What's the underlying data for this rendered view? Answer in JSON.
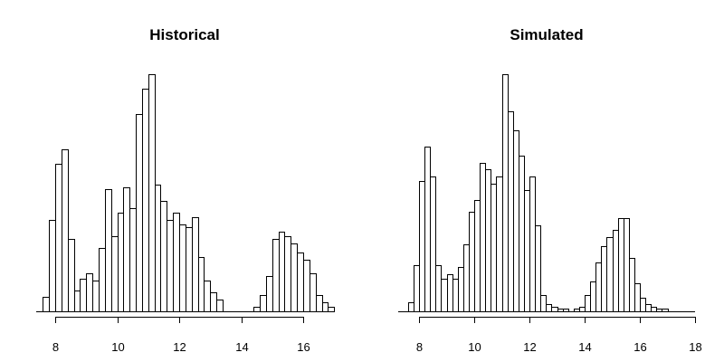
{
  "chart_data": [
    {
      "type": "bar",
      "title": "Historical",
      "xlabel": "",
      "ylabel": "",
      "bin_width": 0.2,
      "xlim": [
        7.4,
        17.0
      ],
      "ylim": [
        0,
        100
      ],
      "x_ticks": [
        8,
        10,
        12,
        14,
        16
      ],
      "grid": false,
      "bins": [
        {
          "x0": 7.4,
          "value": 0
        },
        {
          "x0": 7.6,
          "value": 6
        },
        {
          "x0": 7.8,
          "value": 39
        },
        {
          "x0": 8.0,
          "value": 63
        },
        {
          "x0": 8.2,
          "value": 69
        },
        {
          "x0": 8.4,
          "value": 31
        },
        {
          "x0": 8.6,
          "value": 9
        },
        {
          "x0": 8.8,
          "value": 14
        },
        {
          "x0": 9.0,
          "value": 16
        },
        {
          "x0": 9.2,
          "value": 13
        },
        {
          "x0": 9.4,
          "value": 27
        },
        {
          "x0": 9.6,
          "value": 52
        },
        {
          "x0": 9.8,
          "value": 32
        },
        {
          "x0": 10.0,
          "value": 42
        },
        {
          "x0": 10.2,
          "value": 53
        },
        {
          "x0": 10.4,
          "value": 44
        },
        {
          "x0": 10.6,
          "value": 84
        },
        {
          "x0": 10.8,
          "value": 95
        },
        {
          "x0": 11.0,
          "value": 101
        },
        {
          "x0": 11.2,
          "value": 54
        },
        {
          "x0": 11.4,
          "value": 47
        },
        {
          "x0": 11.6,
          "value": 39
        },
        {
          "x0": 11.8,
          "value": 42
        },
        {
          "x0": 12.0,
          "value": 37
        },
        {
          "x0": 12.2,
          "value": 36
        },
        {
          "x0": 12.4,
          "value": 40
        },
        {
          "x0": 12.6,
          "value": 23
        },
        {
          "x0": 12.8,
          "value": 13
        },
        {
          "x0": 13.0,
          "value": 8
        },
        {
          "x0": 13.2,
          "value": 5
        },
        {
          "x0": 13.4,
          "value": 0
        },
        {
          "x0": 13.6,
          "value": 0
        },
        {
          "x0": 13.8,
          "value": 0
        },
        {
          "x0": 14.0,
          "value": 0
        },
        {
          "x0": 14.2,
          "value": 0
        },
        {
          "x0": 14.4,
          "value": 2
        },
        {
          "x0": 14.6,
          "value": 7
        },
        {
          "x0": 14.8,
          "value": 15
        },
        {
          "x0": 15.0,
          "value": 31
        },
        {
          "x0": 15.2,
          "value": 34
        },
        {
          "x0": 15.4,
          "value": 32
        },
        {
          "x0": 15.6,
          "value": 29
        },
        {
          "x0": 15.8,
          "value": 25
        },
        {
          "x0": 16.0,
          "value": 22
        },
        {
          "x0": 16.2,
          "value": 16
        },
        {
          "x0": 16.4,
          "value": 7
        },
        {
          "x0": 16.6,
          "value": 4
        },
        {
          "x0": 16.8,
          "value": 2
        }
      ]
    },
    {
      "type": "bar",
      "title": "Simulated",
      "xlabel": "",
      "ylabel": "",
      "bin_width": 0.2,
      "xlim": [
        7.4,
        18.0
      ],
      "ylim": [
        0,
        100
      ],
      "x_ticks": [
        8,
        10,
        12,
        14,
        16,
        18
      ],
      "grid": false,
      "bins": [
        {
          "x0": 7.4,
          "value": 0
        },
        {
          "x0": 7.6,
          "value": 4
        },
        {
          "x0": 7.8,
          "value": 20
        },
        {
          "x0": 8.0,
          "value": 56
        },
        {
          "x0": 8.2,
          "value": 71
        },
        {
          "x0": 8.4,
          "value": 58
        },
        {
          "x0": 8.6,
          "value": 20
        },
        {
          "x0": 8.8,
          "value": 14
        },
        {
          "x0": 9.0,
          "value": 16
        },
        {
          "x0": 9.2,
          "value": 14
        },
        {
          "x0": 9.4,
          "value": 19
        },
        {
          "x0": 9.6,
          "value": 29
        },
        {
          "x0": 9.8,
          "value": 43
        },
        {
          "x0": 10.0,
          "value": 48
        },
        {
          "x0": 10.2,
          "value": 64
        },
        {
          "x0": 10.4,
          "value": 61
        },
        {
          "x0": 10.6,
          "value": 55
        },
        {
          "x0": 10.8,
          "value": 58
        },
        {
          "x0": 11.0,
          "value": 102
        },
        {
          "x0": 11.2,
          "value": 86
        },
        {
          "x0": 11.4,
          "value": 78
        },
        {
          "x0": 11.6,
          "value": 67
        },
        {
          "x0": 11.8,
          "value": 52
        },
        {
          "x0": 12.0,
          "value": 58
        },
        {
          "x0": 12.2,
          "value": 37
        },
        {
          "x0": 12.4,
          "value": 7
        },
        {
          "x0": 12.6,
          "value": 3
        },
        {
          "x0": 12.8,
          "value": 2
        },
        {
          "x0": 13.0,
          "value": 1
        },
        {
          "x0": 13.2,
          "value": 1
        },
        {
          "x0": 13.4,
          "value": 0
        },
        {
          "x0": 13.6,
          "value": 1
        },
        {
          "x0": 13.8,
          "value": 2
        },
        {
          "x0": 14.0,
          "value": 7
        },
        {
          "x0": 14.2,
          "value": 13
        },
        {
          "x0": 14.4,
          "value": 21
        },
        {
          "x0": 14.6,
          "value": 28
        },
        {
          "x0": 14.8,
          "value": 32
        },
        {
          "x0": 15.0,
          "value": 35
        },
        {
          "x0": 15.2,
          "value": 40
        },
        {
          "x0": 15.4,
          "value": 40
        },
        {
          "x0": 15.6,
          "value": 23
        },
        {
          "x0": 15.8,
          "value": 12
        },
        {
          "x0": 16.0,
          "value": 6
        },
        {
          "x0": 16.2,
          "value": 3
        },
        {
          "x0": 16.4,
          "value": 2
        },
        {
          "x0": 16.6,
          "value": 1
        },
        {
          "x0": 16.8,
          "value": 1
        },
        {
          "x0": 17.0,
          "value": 0
        }
      ]
    }
  ]
}
